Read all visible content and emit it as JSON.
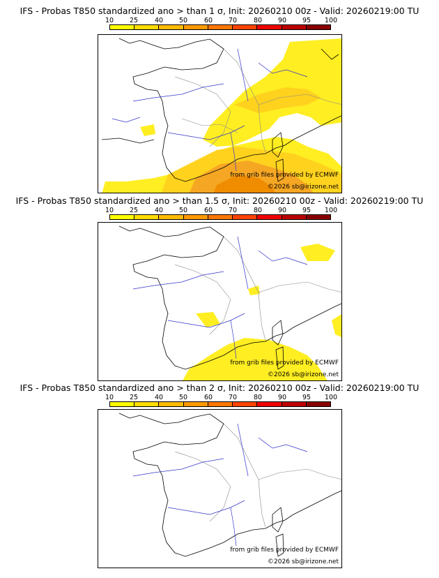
{
  "panels": [
    {
      "title": "IFS - Probas T850  standardized ano > than 1 σ, Init: 20260210 00z - Valid: 20260219:00 TU",
      "threshold": "1 σ"
    },
    {
      "title": "IFS - Probas T850  standardized ano > than 1.5 σ, Init: 20260210 00z - Valid: 20260219:00 TU",
      "threshold": "1.5 σ"
    },
    {
      "title": "IFS - Probas T850  standardized ano > than 2 σ, Init: 20260210 00z - Valid: 20260219:00 TU",
      "threshold": "2 σ"
    }
  ],
  "scale": {
    "labels": [
      "10",
      "25",
      "40",
      "50",
      "60",
      "70",
      "80",
      "90",
      "95",
      "100"
    ],
    "colors": [
      "#ffff00",
      "#ffdd00",
      "#ffbb00",
      "#ff9900",
      "#ff7700",
      "#ff4400",
      "#ee0000",
      "#bb0000",
      "#880000"
    ]
  },
  "credits": {
    "source": "from grib files provided by ECMWF",
    "copyright": "©2026 sb@irizone.net"
  },
  "colors": {
    "coast": "#000000",
    "rivers": "#3333cc",
    "borders": "#888888",
    "p10": "#ffee22",
    "p25": "#ffd21e",
    "p40": "#f5a623",
    "p50": "#f08c00"
  }
}
